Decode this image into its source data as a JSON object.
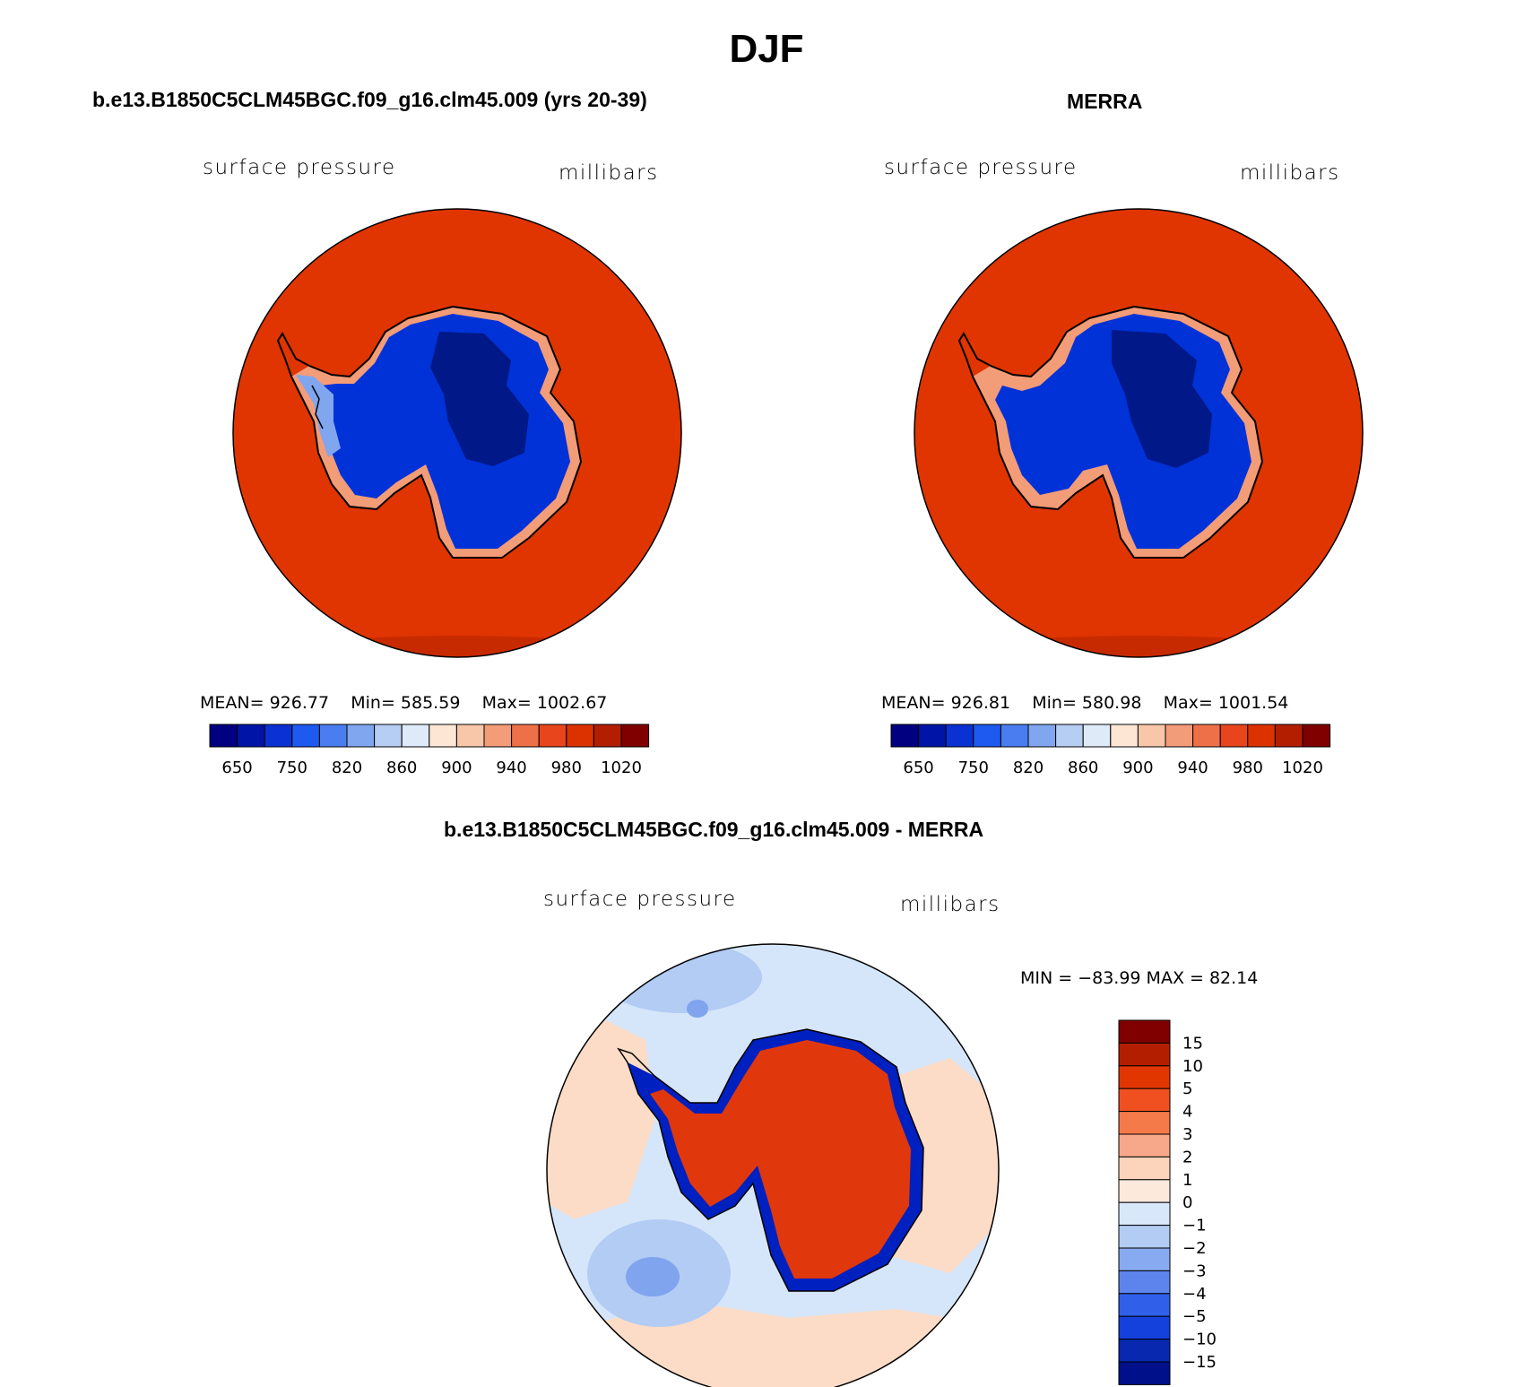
{
  "title": "DJF",
  "panels": [
    {
      "title": "b.e13.B1850C5CLM45BGC.f09_g16.clm45.009 (yrs 20-39)",
      "left_label": "surface pressure",
      "right_label": "millibars",
      "mean": "926.77",
      "min": "585.59",
      "max": "1002.67"
    },
    {
      "title": "MERRA",
      "left_label": "surface pressure",
      "right_label": "millibars",
      "mean": "926.81",
      "min": "580.98",
      "max": "1001.54"
    }
  ],
  "diff": {
    "title": "b.e13.B1850C5CLM45BGC.f09_g16.clm45.009 - MERRA",
    "left_label": "surface pressure",
    "right_label": "millibars",
    "minmax_text": "MIN = −83.99 MAX =  82.14"
  },
  "labels": {
    "mean": "MEAN=",
    "min": "Min=",
    "max": "Max="
  },
  "colorbar_main": {
    "colors": [
      "#000080",
      "#0014a8",
      "#0a32d2",
      "#1e5af0",
      "#4a7ef0",
      "#80a6f0",
      "#b6cdf4",
      "#deeaf8",
      "#fde6d4",
      "#f8c6a8",
      "#f39c78",
      "#ee7048",
      "#e8451c",
      "#dc3200",
      "#b41e00",
      "#800000"
    ],
    "tick_labels": [
      "650",
      "750",
      "820",
      "860",
      "900",
      "940",
      "980",
      "1020"
    ]
  },
  "colorbar_diff": {
    "colors": [
      "#800000",
      "#b41e00",
      "#e23600",
      "#f05020",
      "#f47a4a",
      "#f8a88a",
      "#fcd4bc",
      "#fde9dc",
      "#d8e8fa",
      "#b2ccf4",
      "#88aaf0",
      "#5c84ec",
      "#3060ea",
      "#1440dc",
      "#0828b0",
      "#00108a"
    ],
    "tick_labels": [
      "15",
      "10",
      "5",
      "4",
      "3",
      "2",
      "1",
      "0",
      "−1",
      "−2",
      "−3",
      "−4",
      "−5",
      "−10",
      "−15"
    ]
  },
  "map_colors": {
    "ocean": "#e03500",
    "ocean_shade": "#c82a00",
    "continent": "#0032d8",
    "interior": "#001888",
    "ice_light": "#80a6f0",
    "edge": "#f39c78"
  },
  "diff_colors": {
    "neutral": "#d6e6fa",
    "warm": "#fcdcc6",
    "cool": "#b2ccf4",
    "cool2": "#80a4ee",
    "high": "#e0380c",
    "low": "#0020c0"
  }
}
